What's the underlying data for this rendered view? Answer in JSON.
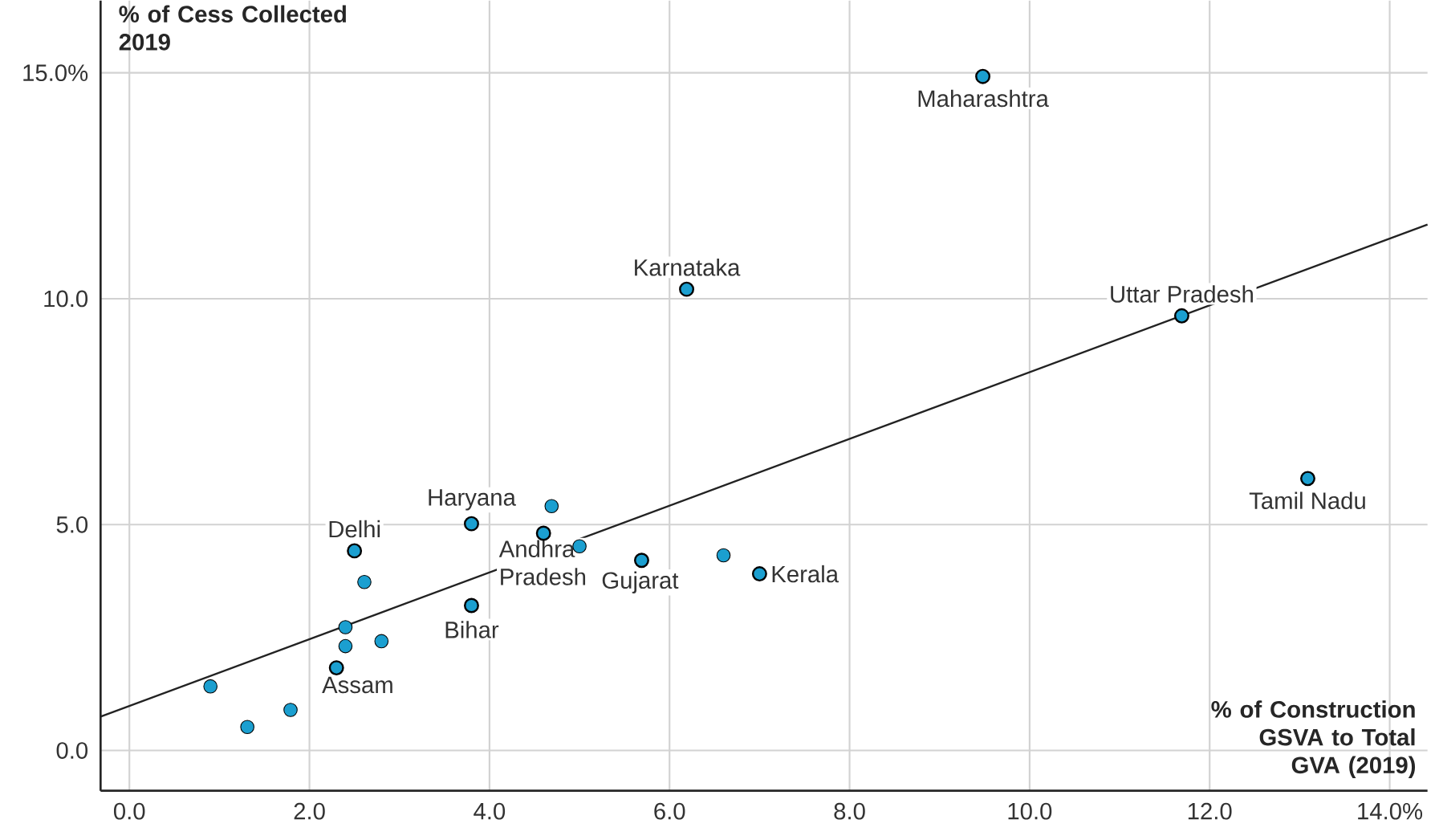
{
  "chart_data": {
    "type": "scatter",
    "xlabel": "% of Construction GSVA to Total GVA (2019)",
    "ylabel": "% of Cess Collected 2019",
    "x": [
      9.48,
      6.19,
      11.69,
      13.09,
      2.5,
      3.8,
      4.6,
      3.8,
      5.69,
      7.0,
      2.3,
      4.69,
      5.0,
      6.6,
      2.61,
      2.4,
      2.4,
      2.8,
      0.9,
      1.31,
      1.79
    ],
    "series": [
      {
        "marker": "circle",
        "color": "#1b9fd0",
        "values": [
          14.92,
          10.21,
          9.62,
          6.02,
          4.42,
          5.02,
          4.81,
          3.21,
          4.21,
          3.91,
          1.83,
          5.41,
          4.52,
          4.32,
          3.73,
          2.73,
          2.31,
          2.42,
          1.42,
          0.52,
          0.9
        ]
      },
      {
        "type": "line",
        "marker": "none",
        "color": "#222222",
        "x": [
          -0.32,
          14.42
        ],
        "values": [
          0.75,
          11.64
        ]
      }
    ],
    "annotations": [
      {
        "text": "Maharashtra",
        "x": 9.48,
        "y": 14.92
      },
      {
        "text": "Karnataka",
        "x": 6.19,
        "y": 10.21
      },
      {
        "text": "Uttar Pradesh",
        "x": 11.69,
        "y": 9.62
      },
      {
        "text": "Tamil Nadu",
        "x": 13.09,
        "y": 6.02
      },
      {
        "text": "Delhi",
        "x": 2.5,
        "y": 4.42
      },
      {
        "text": "Haryana",
        "x": 3.8,
        "y": 5.02
      },
      {
        "text": "Andhra Pradesh",
        "x": 4.6,
        "y": 4.81
      },
      {
        "text": "Bihar",
        "x": 3.8,
        "y": 3.21
      },
      {
        "text": "Gujarat",
        "x": 5.69,
        "y": 4.21
      },
      {
        "text": "Kerala",
        "x": 7.0,
        "y": 3.91
      },
      {
        "text": "Assam",
        "x": 2.3,
        "y": 1.83
      }
    ],
    "xlim": [
      -0.32,
      14.42
    ],
    "ylim": [
      -0.89,
      16.6
    ],
    "xticks": [
      {
        "value": 0,
        "label": "0.0"
      },
      {
        "value": 2,
        "label": "2.0"
      },
      {
        "value": 4,
        "label": "4.0"
      },
      {
        "value": 6,
        "label": "6.0"
      },
      {
        "value": 8,
        "label": "8.0"
      },
      {
        "value": 10,
        "label": "10.0"
      },
      {
        "value": 12,
        "label": "12.0"
      },
      {
        "value": 14,
        "label": "14.0%"
      }
    ],
    "yticks": [
      {
        "value": 0,
        "label": "0.0"
      },
      {
        "value": 5,
        "label": "5.0"
      },
      {
        "value": 10,
        "label": "10.0"
      },
      {
        "value": 15,
        "label": "15.0%"
      }
    ],
    "grid": true
  }
}
